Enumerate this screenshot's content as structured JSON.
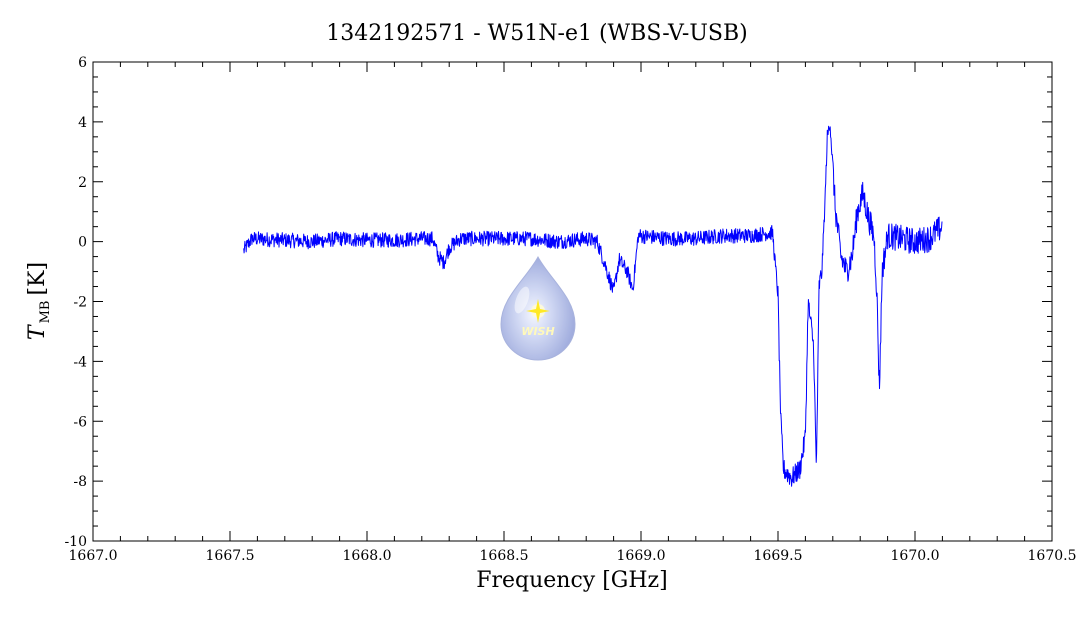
{
  "chart_data": {
    "type": "line",
    "title": "1342192571 - W51N-e1 (WBS-V-USB)",
    "xlabel": "Frequency [GHz]",
    "ylabel_main": "T",
    "ylabel_sub": "MB",
    "ylabel_unit": "[K]",
    "xlim": [
      1667.0,
      1670.5
    ],
    "ylim": [
      -10,
      6
    ],
    "x_ticks": [
      "1667.0",
      "1667.5",
      "1668.0",
      "1668.5",
      "1669.0",
      "1669.5",
      "1670.0",
      "1670.5"
    ],
    "y_ticks": [
      "6",
      "4",
      "2",
      "0",
      "-2",
      "-4",
      "-6",
      "-8",
      "-10"
    ],
    "grid": false,
    "series_color": "#0000ff",
    "series": [
      {
        "points": [
          [
            1667.55,
            -0.3
          ],
          [
            1667.58,
            0.1
          ],
          [
            1667.7,
            0.05
          ],
          [
            1667.8,
            0.0
          ],
          [
            1667.9,
            0.1
          ],
          [
            1668.0,
            0.05
          ],
          [
            1668.1,
            0.05
          ],
          [
            1668.2,
            0.1
          ],
          [
            1668.24,
            0.1
          ],
          [
            1668.26,
            -0.5
          ],
          [
            1668.28,
            -0.7
          ],
          [
            1668.3,
            -0.2
          ],
          [
            1668.34,
            0.1
          ],
          [
            1668.5,
            0.1
          ],
          [
            1668.6,
            0.1
          ],
          [
            1668.7,
            0.0
          ],
          [
            1668.8,
            0.1
          ],
          [
            1668.84,
            0.0
          ],
          [
            1668.87,
            -0.8
          ],
          [
            1668.9,
            -1.7
          ],
          [
            1668.92,
            -0.6
          ],
          [
            1668.95,
            -1.0
          ],
          [
            1668.97,
            -1.6
          ],
          [
            1668.99,
            0.2
          ],
          [
            1669.1,
            0.1
          ],
          [
            1669.2,
            0.1
          ],
          [
            1669.3,
            0.2
          ],
          [
            1669.4,
            0.2
          ],
          [
            1669.48,
            0.3
          ],
          [
            1669.5,
            -1.8
          ],
          [
            1669.51,
            -6.0
          ],
          [
            1669.52,
            -7.6
          ],
          [
            1669.55,
            -7.9
          ],
          [
            1669.58,
            -7.6
          ],
          [
            1669.6,
            -6.5
          ],
          [
            1669.61,
            -2.0
          ],
          [
            1669.63,
            -3.5
          ],
          [
            1669.64,
            -7.7
          ],
          [
            1669.65,
            -1.5
          ],
          [
            1669.66,
            -1.0
          ],
          [
            1669.67,
            1.0
          ],
          [
            1669.68,
            3.5
          ],
          [
            1669.69,
            4.0
          ],
          [
            1669.71,
            1.0
          ],
          [
            1669.73,
            -0.5
          ],
          [
            1669.75,
            -1.0
          ],
          [
            1669.77,
            -0.5
          ],
          [
            1669.79,
            1.0
          ],
          [
            1669.81,
            1.6
          ],
          [
            1669.83,
            0.8
          ],
          [
            1669.85,
            0.2
          ],
          [
            1669.86,
            -1.5
          ],
          [
            1669.87,
            -5.0
          ],
          [
            1669.88,
            -1.0
          ],
          [
            1669.9,
            0.2
          ],
          [
            1670.0,
            0.0
          ],
          [
            1670.05,
            0.1
          ],
          [
            1670.1,
            0.5
          ]
        ]
      }
    ],
    "logo_text": "WISH"
  }
}
